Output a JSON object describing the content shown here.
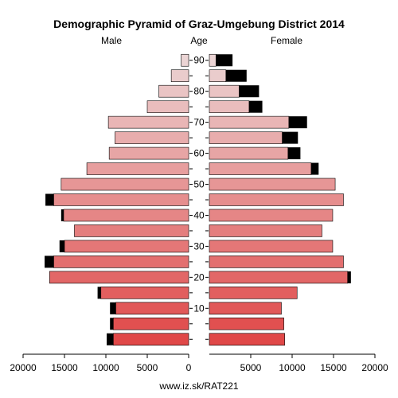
{
  "chart_data": {
    "type": "bar",
    "orientation": "horizontal",
    "layout": "population-pyramid",
    "title": "Demographic Pyramid of Graz-Umgebung District 2014",
    "left_label": "Male",
    "center_label": "Age",
    "right_label": "Female",
    "footer": "www.iz.sk/RAT221",
    "xlim": [
      0,
      20000
    ],
    "x_ticks": [
      "20000",
      "15000",
      "10000",
      "5000",
      "0",
      "5000",
      "10000",
      "15000",
      "20000"
    ],
    "x_tick_values": [
      20000,
      15000,
      10000,
      5000,
      0,
      5000,
      10000,
      15000,
      20000
    ],
    "age_ticks": [
      "10",
      "20",
      "30",
      "40",
      "50",
      "60",
      "70",
      "80",
      "90"
    ],
    "age_tick_values": [
      10,
      20,
      30,
      40,
      50,
      60,
      70,
      80,
      90
    ],
    "age_groups": [
      0,
      5,
      10,
      15,
      20,
      25,
      30,
      35,
      40,
      45,
      50,
      55,
      60,
      65,
      70,
      75,
      80,
      85,
      90
    ],
    "note": "each value = [base, excess]; black segment marks the excess over the opposite sex",
    "male": [
      [
        9100,
        800
      ],
      [
        9100,
        400
      ],
      [
        8800,
        700
      ],
      [
        10600,
        400
      ],
      [
        16800,
        0
      ],
      [
        16300,
        1100
      ],
      [
        15000,
        600
      ],
      [
        13800,
        0
      ],
      [
        15100,
        300
      ],
      [
        16300,
        1000
      ],
      [
        15400,
        0
      ],
      [
        12300,
        0
      ],
      [
        9600,
        0
      ],
      [
        8900,
        0
      ],
      [
        9700,
        0
      ],
      [
        5000,
        0
      ],
      [
        3600,
        0
      ],
      [
        2100,
        0
      ],
      [
        900,
        0
      ]
    ],
    "female": [
      [
        9100,
        0
      ],
      [
        9000,
        0
      ],
      [
        8700,
        0
      ],
      [
        10600,
        0
      ],
      [
        16700,
        400
      ],
      [
        16200,
        0
      ],
      [
        14900,
        0
      ],
      [
        13600,
        0
      ],
      [
        14900,
        0
      ],
      [
        16200,
        0
      ],
      [
        15200,
        0
      ],
      [
        12300,
        900
      ],
      [
        9500,
        1500
      ],
      [
        8800,
        1900
      ],
      [
        9600,
        2200
      ],
      [
        4800,
        1600
      ],
      [
        3600,
        2400
      ],
      [
        2000,
        2500
      ],
      [
        800,
        2000
      ]
    ],
    "colors": {
      "young": "#e04848",
      "old": "#ebd4d4",
      "excess": "#000000"
    }
  }
}
